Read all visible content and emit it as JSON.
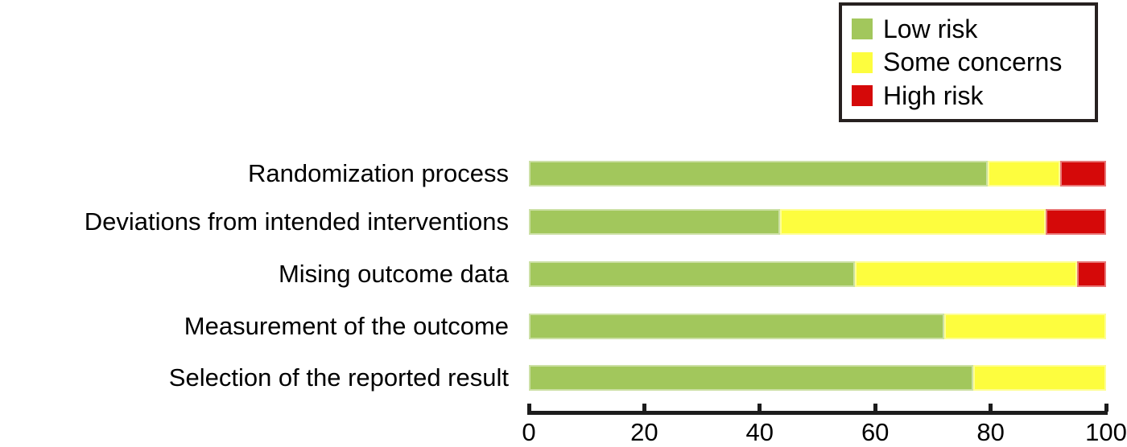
{
  "chart_data": {
    "type": "bar",
    "subtype": "horizontal_stacked",
    "orientation": "horizontal",
    "stacked": true,
    "title": "",
    "xlabel": "",
    "ylabel": "",
    "unit": "percent",
    "grid": false,
    "legend_position": "top-right",
    "xlim": [
      0,
      100
    ],
    "x_ticks": [
      "0",
      "20",
      "40",
      "60",
      "80",
      "100"
    ],
    "categories": [
      "Randomization process",
      "Deviations from intended interventions",
      "Mising outcome data",
      "Measurement of the outcome",
      "Selection of the reported result"
    ],
    "series": [
      {
        "name": "Low risk",
        "color": "#a2c75c",
        "values": [
          79.5,
          43.5,
          56.5,
          72,
          77
        ]
      },
      {
        "name": "Some concerns",
        "color": "#fdfd3e",
        "values": [
          12.5,
          46.0,
          38.5,
          28,
          23
        ]
      },
      {
        "name": "High risk",
        "color": "#d50909",
        "values": [
          8.0,
          10.5,
          5.0,
          0,
          0
        ]
      }
    ]
  },
  "colors": {
    "axis": "#1c1c1c",
    "text": "#000000",
    "legend_border": "#272120",
    "background": "#ffffff"
  }
}
